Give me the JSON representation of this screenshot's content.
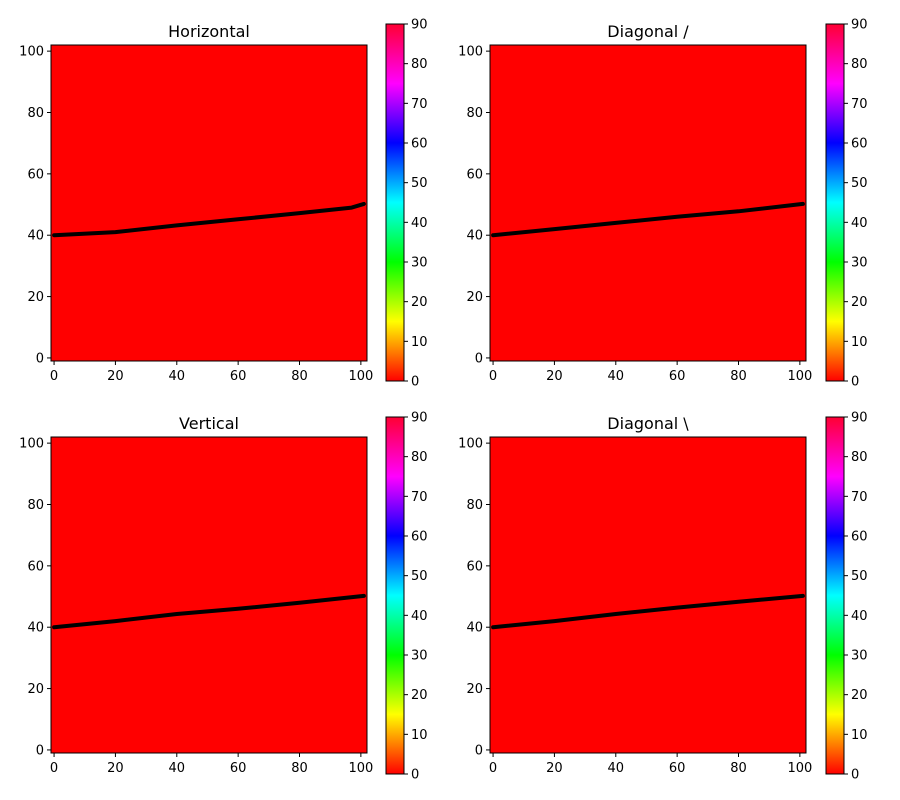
{
  "chart_data": [
    {
      "type": "heatmap",
      "title": "Horizontal",
      "xlim": [
        -1,
        102
      ],
      "ylim": [
        -1,
        102
      ],
      "x_ticks": [
        0,
        20,
        40,
        60,
        80,
        100
      ],
      "y_ticks": [
        0,
        20,
        40,
        60,
        80,
        100
      ],
      "field_value": 0,
      "colorbar": {
        "range": [
          0,
          90
        ],
        "ticks": [
          0,
          10,
          20,
          30,
          40,
          50,
          60,
          70,
          80,
          90
        ],
        "colormap": "hsv"
      },
      "line": {
        "color": "#000000",
        "x": [
          0,
          20,
          40,
          60,
          80,
          97,
          101
        ],
        "y": [
          40,
          41,
          43.2,
          45.2,
          47.2,
          49,
          50.2
        ]
      }
    },
    {
      "type": "heatmap",
      "title": "Diagonal /",
      "xlim": [
        -1,
        102
      ],
      "ylim": [
        -1,
        102
      ],
      "x_ticks": [
        0,
        20,
        40,
        60,
        80,
        100
      ],
      "y_ticks": [
        0,
        20,
        40,
        60,
        80,
        100
      ],
      "field_value": 0,
      "colorbar": {
        "range": [
          0,
          90
        ],
        "ticks": [
          0,
          10,
          20,
          30,
          40,
          50,
          60,
          70,
          80,
          90
        ],
        "colormap": "hsv"
      },
      "line": {
        "color": "#000000",
        "x": [
          0,
          20,
          40,
          60,
          80,
          101
        ],
        "y": [
          40,
          42,
          44,
          46,
          47.8,
          50.2
        ]
      }
    },
    {
      "type": "heatmap",
      "title": "Vertical",
      "xlim": [
        -1,
        102
      ],
      "ylim": [
        -1,
        102
      ],
      "x_ticks": [
        0,
        20,
        40,
        60,
        80,
        100
      ],
      "y_ticks": [
        0,
        20,
        40,
        60,
        80,
        100
      ],
      "field_value": 0,
      "colorbar": {
        "range": [
          0,
          90
        ],
        "ticks": [
          0,
          10,
          20,
          30,
          40,
          50,
          60,
          70,
          80,
          90
        ],
        "colormap": "hsv"
      },
      "line": {
        "color": "#000000",
        "x": [
          0,
          20,
          40,
          60,
          80,
          101
        ],
        "y": [
          40,
          42,
          44.3,
          46,
          48,
          50.2
        ]
      }
    },
    {
      "type": "heatmap",
      "title": "Diagonal \\",
      "xlim": [
        -1,
        102
      ],
      "ylim": [
        -1,
        102
      ],
      "x_ticks": [
        0,
        20,
        40,
        60,
        80,
        100
      ],
      "y_ticks": [
        0,
        20,
        40,
        60,
        80,
        100
      ],
      "field_value": 0,
      "colorbar": {
        "range": [
          0,
          90
        ],
        "ticks": [
          0,
          10,
          20,
          30,
          40,
          50,
          60,
          70,
          80,
          90
        ],
        "colormap": "hsv"
      },
      "line": {
        "color": "#000000",
        "x": [
          0,
          20,
          40,
          60,
          80,
          101
        ],
        "y": [
          40,
          42,
          44.3,
          46.4,
          48.3,
          50.2
        ]
      }
    }
  ]
}
